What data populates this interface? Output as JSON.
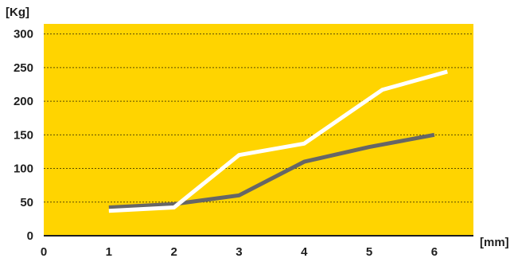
{
  "chart_data": {
    "type": "line",
    "xlabel": "[mm]",
    "ylabel": "[Kg]",
    "xlim": [
      0,
      6.6
    ],
    "ylim": [
      0,
      315
    ],
    "x_ticks": [
      0,
      1,
      2,
      3,
      4,
      5,
      6
    ],
    "y_ticks": [
      0,
      50,
      100,
      150,
      200,
      250,
      300
    ],
    "grid": {
      "horizontal": true,
      "style": "dashed"
    },
    "colors": {
      "plot_background": "#FFD400",
      "grid": "#5a4a00",
      "axis": "#1e1e1e"
    },
    "series": [
      {
        "color": "#666666",
        "points": [
          [
            1,
            42
          ],
          [
            2,
            47
          ],
          [
            3,
            60
          ],
          [
            4,
            110
          ],
          [
            5,
            132
          ],
          [
            6,
            150
          ]
        ]
      },
      {
        "color": "#ffffff",
        "points": [
          [
            1,
            37
          ],
          [
            2,
            42
          ],
          [
            3,
            120
          ],
          [
            4,
            137
          ],
          [
            5.2,
            217
          ],
          [
            6.2,
            244
          ]
        ]
      }
    ]
  }
}
